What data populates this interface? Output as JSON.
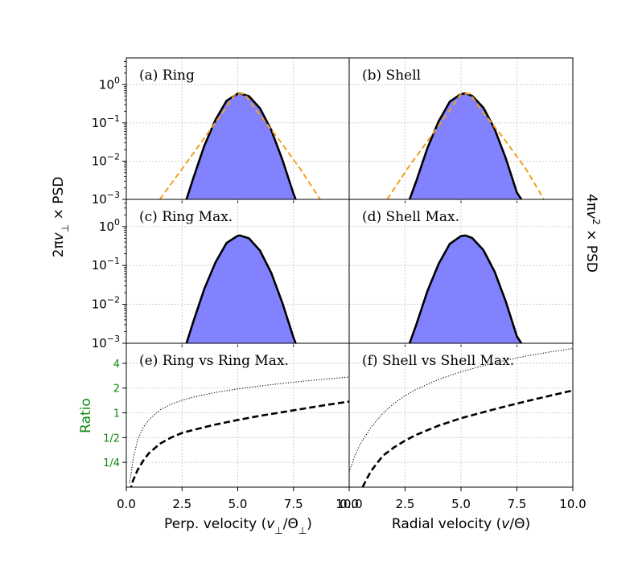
{
  "chart_data": {
    "type": "line",
    "x_ticks": [
      "0.0",
      "2.5",
      "5.0",
      "7.5",
      "10.0"
    ],
    "log_y_ticks": [
      {
        "base": "10",
        "exp": "0"
      },
      {
        "base": "10",
        "exp": "−1"
      },
      {
        "base": "10",
        "exp": "−2"
      },
      {
        "base": "10",
        "exp": "−3"
      }
    ],
    "log_ylim": [
      0.001,
      5
    ],
    "ratio_ticks": [
      "4",
      "2",
      "1",
      "1/2",
      "1/4"
    ],
    "ratio_tick_values": [
      4,
      2,
      1,
      0.5,
      0.25
    ],
    "ratio_ylim": [
      0.125,
      7
    ],
    "xlim": [
      0,
      10
    ],
    "grid": true,
    "colors": {
      "histogram": "#7b7bff",
      "fit_line": "#000000",
      "approx_line": "#f0a020",
      "ratio_label": "#118811"
    },
    "panels": [
      {
        "title": "(a) Ring",
        "x": [
          2.7,
          3.0,
          3.5,
          4.0,
          4.5,
          5.0,
          5.1,
          5.5,
          6.0,
          6.5,
          7.0,
          7.5,
          7.6
        ],
        "series": [
          {
            "style": "solid",
            "y": [
              0.001,
              0.0035,
              0.025,
              0.12,
              0.38,
              0.58,
              0.59,
              0.5,
              0.24,
              0.065,
              0.011,
              0.0014,
              0.001
            ]
          },
          {
            "style": "dashed",
            "x": [
              1.5,
              2.5,
              3.5,
              4.5,
              4.9,
              5.3,
              5.8,
              6.8,
              7.8,
              8.7
            ],
            "y": [
              0.001,
              0.0063,
              0.04,
              0.26,
              0.58,
              0.58,
              0.22,
              0.04,
              0.0063,
              0.001
            ]
          }
        ]
      },
      {
        "title": "(b) Shell",
        "x": [
          2.7,
          3.0,
          3.5,
          4.0,
          4.5,
          5.0,
          5.2,
          5.5,
          6.0,
          6.5,
          7.0,
          7.5,
          7.7
        ],
        "series": [
          {
            "style": "solid",
            "y": [
              0.001,
              0.003,
              0.022,
              0.11,
              0.36,
              0.57,
              0.59,
              0.51,
              0.25,
              0.07,
              0.012,
              0.0015,
              0.001
            ]
          },
          {
            "style": "dashed",
            "x": [
              1.7,
              2.6,
              3.6,
              4.6,
              5.0,
              5.4,
              5.9,
              6.9,
              7.9,
              8.7
            ],
            "y": [
              0.001,
              0.0063,
              0.04,
              0.26,
              0.58,
              0.58,
              0.22,
              0.04,
              0.0063,
              0.001
            ]
          }
        ]
      },
      {
        "title": "(c) Ring Max.",
        "x": [
          2.7,
          3.0,
          3.5,
          4.0,
          4.5,
          5.0,
          5.1,
          5.5,
          6.0,
          6.5,
          7.0,
          7.5,
          7.6
        ],
        "series": [
          {
            "style": "solid",
            "y": [
              0.001,
              0.0035,
              0.025,
              0.12,
              0.38,
              0.58,
              0.59,
              0.5,
              0.24,
              0.065,
              0.011,
              0.0014,
              0.001
            ]
          }
        ]
      },
      {
        "title": "(d) Shell Max.",
        "x": [
          2.7,
          3.0,
          3.5,
          4.0,
          4.5,
          5.0,
          5.2,
          5.5,
          6.0,
          6.5,
          7.0,
          7.5,
          7.7
        ],
        "series": [
          {
            "style": "solid",
            "y": [
              0.001,
              0.003,
              0.022,
              0.11,
              0.36,
              0.57,
              0.59,
              0.51,
              0.25,
              0.07,
              0.012,
              0.0015,
              0.001
            ]
          }
        ]
      },
      {
        "title": "(e) Ring vs Ring Max.",
        "x": [
          0.15,
          0.3,
          0.5,
          0.75,
          1.0,
          1.5,
          2.0,
          2.5,
          3.0,
          4.0,
          5.0,
          6.0,
          7.0,
          8.0,
          9.0,
          10.0
        ],
        "series": [
          {
            "style": "dotted",
            "y": [
              0.14,
              0.27,
              0.46,
              0.66,
              0.82,
              1.08,
              1.27,
              1.42,
              1.55,
              1.77,
              1.95,
              2.12,
              2.28,
              2.43,
              2.58,
              2.72
            ]
          },
          {
            "style": "dashed",
            "y": [
              0.11,
              0.15,
              0.2,
              0.26,
              0.32,
              0.42,
              0.5,
              0.57,
              0.62,
              0.72,
              0.82,
              0.92,
              1.02,
              1.13,
              1.25,
              1.37
            ]
          }
        ]
      },
      {
        "title": "(f) Shell vs Shell Max.",
        "x": [
          0.0,
          0.25,
          0.5,
          1.0,
          1.5,
          2.0,
          2.5,
          3.0,
          4.0,
          5.0,
          6.0,
          7.0,
          8.0,
          9.0,
          10.0
        ],
        "series": [
          {
            "style": "dotted",
            "y": [
              0.19,
              0.3,
              0.42,
              0.68,
              0.98,
              1.3,
              1.62,
              1.93,
              2.55,
              3.15,
              3.75,
              4.35,
              4.95,
              5.5,
              6.05
            ]
          },
          {
            "style": "dashed",
            "x": [
              0.6,
              0.8,
              1.0,
              1.5,
              2.0,
              2.5,
              3.0,
              4.0,
              5.0,
              6.0,
              7.0,
              8.0,
              9.0,
              10.0
            ],
            "y": [
              0.125,
              0.16,
              0.2,
              0.3,
              0.38,
              0.46,
              0.54,
              0.7,
              0.86,
              1.02,
              1.2,
              1.4,
              1.62,
              1.87
            ]
          }
        ]
      }
    ],
    "xlabels": [
      "Perp. velocity (",
      "Radial velocity ("
    ],
    "ylabel_left": "2πv⊥ × PSD",
    "ylabel_right": "4πv² × PSD",
    "ylabel_ratio": "Ratio"
  },
  "labels": {
    "xlabel_left_prefix": "Perp. velocity (",
    "xlabel_left_var": "v",
    "xlabel_left_sub": "⊥",
    "xlabel_left_mid": "/Θ",
    "xlabel_left_sub2": "⊥",
    "xlabel_left_suffix": ")",
    "xlabel_right_prefix": "Radial velocity (",
    "xlabel_right_var": "v",
    "xlabel_right_suffix": "/Θ)",
    "ylabel_left_pre": "2π",
    "ylabel_left_var": "v",
    "ylabel_left_sub": "⊥",
    "ylabel_left_post": " × PSD",
    "ylabel_right_pre": "4π",
    "ylabel_right_var": "v",
    "ylabel_right_sup": "2",
    "ylabel_right_post": " × PSD",
    "ylabel_ratio": "Ratio"
  }
}
